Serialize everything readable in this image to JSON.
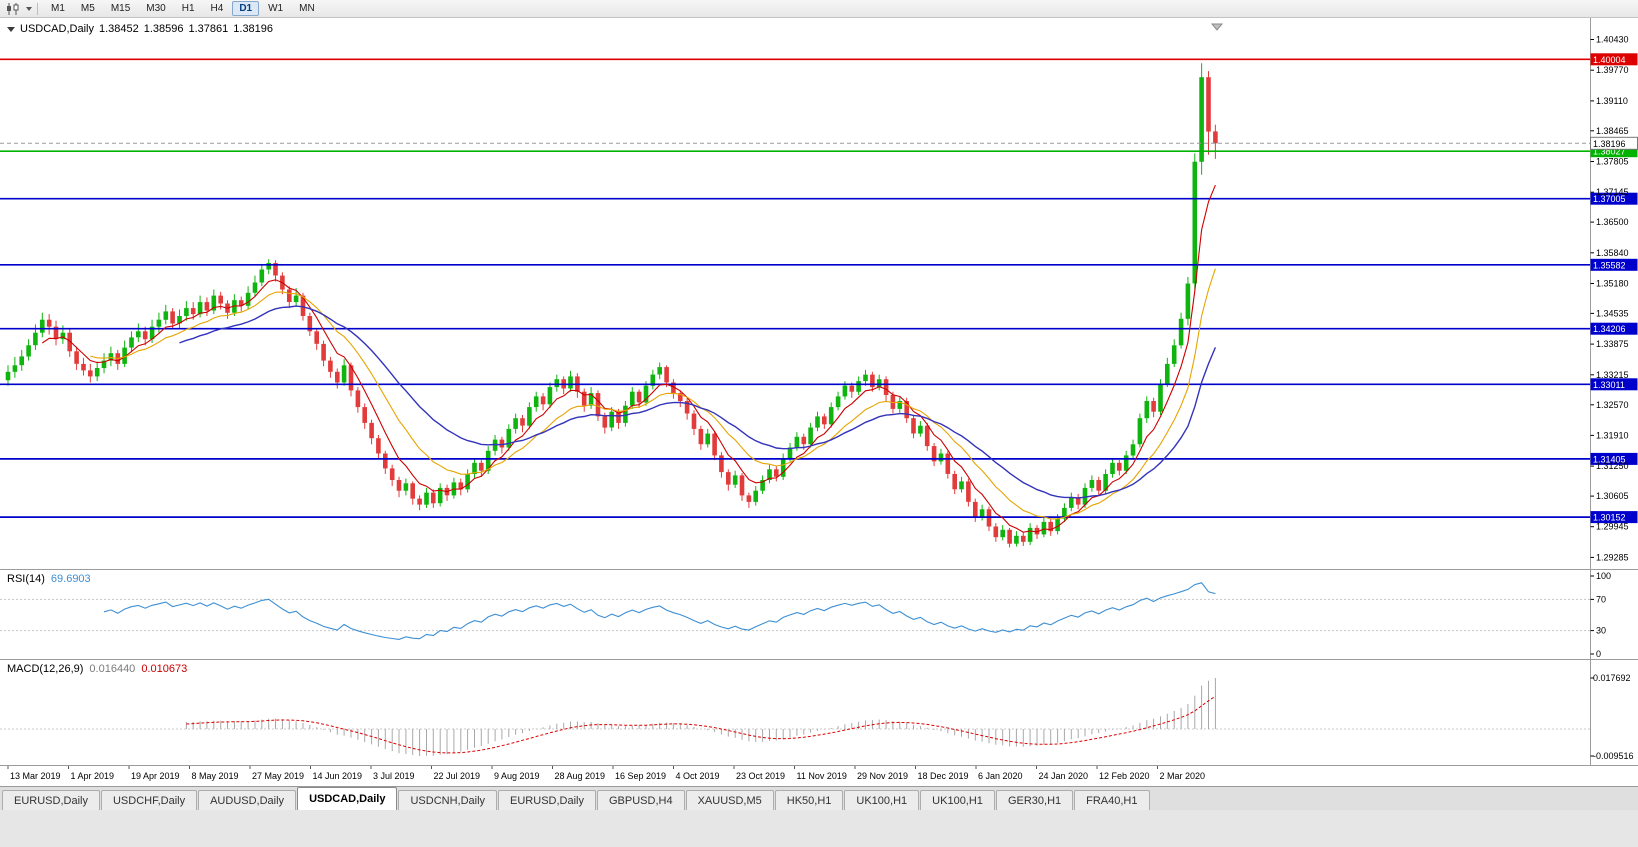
{
  "toolbar": {
    "timeframes": [
      "M1",
      "M5",
      "M15",
      "M30",
      "H1",
      "H4",
      "D1",
      "W1",
      "MN"
    ],
    "selected_timeframe": "D1"
  },
  "header": {
    "symbol": "USDCAD,Daily",
    "open": "1.38452",
    "high": "1.38596",
    "low": "1.37861",
    "close": "1.38196"
  },
  "chart_data": {
    "type": "candlestick",
    "symbol": "USDCAD",
    "timeframe": "Daily",
    "title": "USDCAD,Daily",
    "y_axis_ticks": [
      "1.40430",
      "1.39770",
      "1.39110",
      "1.38465",
      "1.37805",
      "1.37145",
      "1.36500",
      "1.35840",
      "1.35180",
      "1.34535",
      "1.33875",
      "1.33215",
      "1.32570",
      "1.31910",
      "1.31250",
      "1.30605",
      "1.29945",
      "1.29285"
    ],
    "x_axis_labels": [
      "13 Mar 2019",
      "1 Apr 2019",
      "19 Apr 2019",
      "8 May 2019",
      "27 May 2019",
      "14 Jun 2019",
      "3 Jul 2019",
      "22 Jul 2019",
      "9 Aug 2019",
      "28 Aug 2019",
      "16 Sep 2019",
      "4 Oct 2019",
      "23 Oct 2019",
      "11 Nov 2019",
      "29 Nov 2019",
      "18 Dec 2019",
      "6 Jan 2020",
      "24 Jan 2020",
      "12 Feb 2020",
      "2 Mar 2020"
    ],
    "price_lines": [
      {
        "price": 1.40004,
        "label": "1.40004",
        "color": "#dd0000",
        "role": "resistance"
      },
      {
        "price": 1.38027,
        "label": "1.38027",
        "color": "#00b300",
        "role": "support"
      },
      {
        "price": 1.37005,
        "label": "1.37005",
        "color": "#0000cc",
        "role": "level"
      },
      {
        "price": 1.35582,
        "label": "1.35582",
        "color": "#0000cc",
        "role": "level"
      },
      {
        "price": 1.34206,
        "label": "1.34206",
        "color": "#0000cc",
        "role": "level"
      },
      {
        "price": 1.33011,
        "label": "1.33011",
        "color": "#0000cc",
        "role": "level"
      },
      {
        "price": 1.31405,
        "label": "1.31405",
        "color": "#0000cc",
        "role": "level"
      },
      {
        "price": 1.30152,
        "label": "1.30152",
        "color": "#0000cc",
        "role": "level"
      }
    ],
    "current_price": {
      "value": 1.38196,
      "label": "1.38196"
    },
    "colors": {
      "bull": "#0fb40f",
      "bear": "#e13b3b",
      "ma_fast": "#cc0000",
      "ma_medium": "#e6a400",
      "ma_slow": "#3333bb",
      "rsi": "#3d8fd4",
      "macd_histogram": "#a8a8a8",
      "macd_signal": "#dd0000"
    },
    "candles": [
      [
        1.331,
        1.3342,
        1.3298,
        1.3328
      ],
      [
        1.3328,
        1.336,
        1.3315,
        1.3342
      ],
      [
        1.3342,
        1.3375,
        1.333,
        1.3361
      ],
      [
        1.3361,
        1.3398,
        1.3352,
        1.3385
      ],
      [
        1.3385,
        1.343,
        1.3375,
        1.3412
      ],
      [
        1.3412,
        1.3455,
        1.3402,
        1.344
      ],
      [
        1.344,
        1.3452,
        1.3408,
        1.3425
      ],
      [
        1.3425,
        1.3438,
        1.3385,
        1.3398
      ],
      [
        1.3398,
        1.3428,
        1.3388,
        1.3412
      ],
      [
        1.3412,
        1.342,
        1.336,
        1.3372
      ],
      [
        1.3372,
        1.3382,
        1.3332,
        1.3345
      ],
      [
        1.3345,
        1.3358,
        1.332,
        1.3331
      ],
      [
        1.3331,
        1.3345,
        1.3305,
        1.3318
      ],
      [
        1.3318,
        1.335,
        1.3308,
        1.3336
      ],
      [
        1.3336,
        1.3368,
        1.3325,
        1.3352
      ],
      [
        1.3352,
        1.3382,
        1.334,
        1.3368
      ],
      [
        1.3368,
        1.3375,
        1.3332,
        1.3345
      ],
      [
        1.3345,
        1.3395,
        1.3338,
        1.338
      ],
      [
        1.338,
        1.3415,
        1.337,
        1.3402
      ],
      [
        1.3402,
        1.3432,
        1.3392,
        1.3415
      ],
      [
        1.3415,
        1.3425,
        1.3385,
        1.3398
      ],
      [
        1.3398,
        1.344,
        1.339,
        1.3425
      ],
      [
        1.3425,
        1.3455,
        1.3412,
        1.344
      ],
      [
        1.344,
        1.3472,
        1.343,
        1.3458
      ],
      [
        1.3458,
        1.3465,
        1.342,
        1.3432
      ],
      [
        1.3432,
        1.3462,
        1.3422,
        1.3448
      ],
      [
        1.3448,
        1.348,
        1.3438,
        1.3465
      ],
      [
        1.3465,
        1.3478,
        1.344,
        1.3452
      ],
      [
        1.3452,
        1.3492,
        1.3445,
        1.3478
      ],
      [
        1.3478,
        1.3488,
        1.3448,
        1.346
      ],
      [
        1.346,
        1.3505,
        1.3452,
        1.3492
      ],
      [
        1.3492,
        1.35,
        1.3462,
        1.3475
      ],
      [
        1.3475,
        1.3482,
        1.3442,
        1.3455
      ],
      [
        1.3455,
        1.3495,
        1.3448,
        1.3482
      ],
      [
        1.3482,
        1.349,
        1.3458,
        1.347
      ],
      [
        1.347,
        1.3512,
        1.3462,
        1.3498
      ],
      [
        1.3498,
        1.3535,
        1.349,
        1.352
      ],
      [
        1.352,
        1.356,
        1.3512,
        1.3548
      ],
      [
        1.3548,
        1.357,
        1.3538,
        1.3562
      ],
      [
        1.3562,
        1.3568,
        1.3522,
        1.3535
      ],
      [
        1.3535,
        1.3542,
        1.3495,
        1.3505
      ],
      [
        1.3505,
        1.3512,
        1.3465,
        1.3478
      ],
      [
        1.3478,
        1.3508,
        1.3468,
        1.3492
      ],
      [
        1.3492,
        1.3498,
        1.3438,
        1.3448
      ],
      [
        1.3448,
        1.3455,
        1.3405,
        1.3415
      ],
      [
        1.3415,
        1.3422,
        1.3375,
        1.3388
      ],
      [
        1.3388,
        1.3395,
        1.334,
        1.3352
      ],
      [
        1.3352,
        1.336,
        1.3315,
        1.3328
      ],
      [
        1.3328,
        1.3335,
        1.3292,
        1.3305
      ],
      [
        1.3305,
        1.3355,
        1.3298,
        1.3342
      ],
      [
        1.3342,
        1.3348,
        1.3275,
        1.3288
      ],
      [
        1.3288,
        1.3295,
        1.324,
        1.3252
      ],
      [
        1.3252,
        1.326,
        1.3205,
        1.3218
      ],
      [
        1.3218,
        1.3225,
        1.3172,
        1.3185
      ],
      [
        1.3185,
        1.3192,
        1.314,
        1.3152
      ],
      [
        1.3152,
        1.3158,
        1.3108,
        1.312
      ],
      [
        1.312,
        1.3128,
        1.3082,
        1.3095
      ],
      [
        1.3095,
        1.3102,
        1.3058,
        1.3072
      ],
      [
        1.3072,
        1.3098,
        1.3062,
        1.3088
      ],
      [
        1.3088,
        1.3092,
        1.3042,
        1.3055
      ],
      [
        1.3055,
        1.3062,
        1.303,
        1.3042
      ],
      [
        1.3042,
        1.3078,
        1.3035,
        1.3068
      ],
      [
        1.3068,
        1.3075,
        1.3035,
        1.3045
      ],
      [
        1.3045,
        1.3088,
        1.3038,
        1.3078
      ],
      [
        1.3078,
        1.3085,
        1.305,
        1.3062
      ],
      [
        1.3062,
        1.31,
        1.3055,
        1.309
      ],
      [
        1.309,
        1.3098,
        1.3062,
        1.3075
      ],
      [
        1.3075,
        1.3118,
        1.3068,
        1.3108
      ],
      [
        1.3108,
        1.3142,
        1.3098,
        1.3132
      ],
      [
        1.3132,
        1.3138,
        1.3102,
        1.3115
      ],
      [
        1.3115,
        1.3168,
        1.3108,
        1.3158
      ],
      [
        1.3158,
        1.3192,
        1.3148,
        1.3182
      ],
      [
        1.3182,
        1.3188,
        1.3152,
        1.3165
      ],
      [
        1.3165,
        1.3215,
        1.3158,
        1.3205
      ],
      [
        1.3205,
        1.3238,
        1.3195,
        1.3228
      ],
      [
        1.3228,
        1.3235,
        1.3198,
        1.3212
      ],
      [
        1.3212,
        1.3262,
        1.3205,
        1.3252
      ],
      [
        1.3252,
        1.3285,
        1.3242,
        1.3275
      ],
      [
        1.3275,
        1.3282,
        1.3245,
        1.3258
      ],
      [
        1.3258,
        1.3305,
        1.325,
        1.3295
      ],
      [
        1.3295,
        1.3322,
        1.3285,
        1.3312
      ],
      [
        1.3312,
        1.3318,
        1.328,
        1.3292
      ],
      [
        1.3292,
        1.333,
        1.3285,
        1.3318
      ],
      [
        1.3318,
        1.3325,
        1.3272,
        1.3285
      ],
      [
        1.3285,
        1.3292,
        1.3242,
        1.3255
      ],
      [
        1.3255,
        1.3295,
        1.3248,
        1.3282
      ],
      [
        1.3282,
        1.3288,
        1.3222,
        1.3232
      ],
      [
        1.3232,
        1.324,
        1.3195,
        1.3208
      ],
      [
        1.3208,
        1.3252,
        1.32,
        1.3242
      ],
      [
        1.3242,
        1.3248,
        1.3205,
        1.3218
      ],
      [
        1.3218,
        1.3265,
        1.321,
        1.3255
      ],
      [
        1.3255,
        1.3295,
        1.3248,
        1.3285
      ],
      [
        1.3285,
        1.329,
        1.325,
        1.3262
      ],
      [
        1.3262,
        1.3308,
        1.3255,
        1.3298
      ],
      [
        1.3298,
        1.3332,
        1.329,
        1.3322
      ],
      [
        1.3322,
        1.3348,
        1.3312,
        1.3338
      ],
      [
        1.3338,
        1.3342,
        1.3295,
        1.3305
      ],
      [
        1.3305,
        1.3312,
        1.327,
        1.3282
      ],
      [
        1.3282,
        1.3288,
        1.3252,
        1.3265
      ],
      [
        1.3265,
        1.3272,
        1.3225,
        1.3238
      ],
      [
        1.3238,
        1.3245,
        1.3192,
        1.3205
      ],
      [
        1.3205,
        1.3212,
        1.316,
        1.3172
      ],
      [
        1.3172,
        1.3205,
        1.3165,
        1.3195
      ],
      [
        1.3195,
        1.32,
        1.3138,
        1.3148
      ],
      [
        1.3148,
        1.3155,
        1.31,
        1.3112
      ],
      [
        1.3112,
        1.3118,
        1.3072,
        1.3085
      ],
      [
        1.3085,
        1.3115,
        1.3078,
        1.3105
      ],
      [
        1.3105,
        1.311,
        1.305,
        1.3062
      ],
      [
        1.3062,
        1.3068,
        1.3035,
        1.3048
      ],
      [
        1.3048,
        1.3082,
        1.304,
        1.3072
      ],
      [
        1.3072,
        1.3105,
        1.3065,
        1.3095
      ],
      [
        1.3095,
        1.3128,
        1.3088,
        1.3118
      ],
      [
        1.3118,
        1.3125,
        1.3092,
        1.3102
      ],
      [
        1.3102,
        1.3152,
        1.3095,
        1.3142
      ],
      [
        1.3142,
        1.3175,
        1.3135,
        1.3165
      ],
      [
        1.3165,
        1.3198,
        1.3158,
        1.3188
      ],
      [
        1.3188,
        1.3195,
        1.316,
        1.3172
      ],
      [
        1.3172,
        1.3218,
        1.3165,
        1.3208
      ],
      [
        1.3208,
        1.3242,
        1.32,
        1.3232
      ],
      [
        1.3232,
        1.3238,
        1.3205,
        1.3215
      ],
      [
        1.3215,
        1.3262,
        1.3208,
        1.3252
      ],
      [
        1.3252,
        1.3285,
        1.3245,
        1.3275
      ],
      [
        1.3275,
        1.3308,
        1.3268,
        1.3298
      ],
      [
        1.3298,
        1.3305,
        1.3272,
        1.3285
      ],
      [
        1.3285,
        1.3318,
        1.3278,
        1.3308
      ],
      [
        1.3308,
        1.3332,
        1.3298,
        1.3322
      ],
      [
        1.3322,
        1.3328,
        1.3285,
        1.3295
      ],
      [
        1.3295,
        1.3322,
        1.3288,
        1.3312
      ],
      [
        1.3312,
        1.3318,
        1.3265,
        1.3278
      ],
      [
        1.3278,
        1.3285,
        1.3238,
        1.3248
      ],
      [
        1.3248,
        1.3275,
        1.324,
        1.3265
      ],
      [
        1.3265,
        1.3272,
        1.3218,
        1.3228
      ],
      [
        1.3228,
        1.3235,
        1.3185,
        1.3195
      ],
      [
        1.3195,
        1.3222,
        1.3188,
        1.3212
      ],
      [
        1.3212,
        1.3218,
        1.3158,
        1.3168
      ],
      [
        1.3168,
        1.3175,
        1.3125,
        1.3135
      ],
      [
        1.3135,
        1.3162,
        1.3128,
        1.3152
      ],
      [
        1.3152,
        1.3158,
        1.3098,
        1.3108
      ],
      [
        1.3108,
        1.3115,
        1.3065,
        1.3075
      ],
      [
        1.3075,
        1.3102,
        1.3068,
        1.3092
      ],
      [
        1.3092,
        1.3098,
        1.3038,
        1.3048
      ],
      [
        1.3048,
        1.3055,
        1.3005,
        1.3015
      ],
      [
        1.3015,
        1.3042,
        1.3008,
        1.3032
      ],
      [
        1.3032,
        1.3038,
        1.2985,
        1.2995
      ],
      [
        1.2995,
        1.3002,
        1.2962,
        1.2972
      ],
      [
        1.2972,
        1.2998,
        1.2965,
        1.2988
      ],
      [
        1.2988,
        1.2992,
        1.295,
        1.2958
      ],
      [
        1.2958,
        1.2985,
        1.2952,
        1.2975
      ],
      [
        1.2975,
        1.2982,
        1.2953,
        1.2962
      ],
      [
        1.2962,
        1.3002,
        1.2955,
        1.2992
      ],
      [
        1.2992,
        1.2998,
        1.2968,
        1.2978
      ],
      [
        1.2978,
        1.3015,
        1.2972,
        1.3005
      ],
      [
        1.3005,
        1.3012,
        1.2975,
        1.2985
      ],
      [
        1.2985,
        1.3022,
        1.2978,
        1.3012
      ],
      [
        1.3012,
        1.3045,
        1.3005,
        1.3035
      ],
      [
        1.3035,
        1.3068,
        1.3028,
        1.3058
      ],
      [
        1.3058,
        1.3065,
        1.3032,
        1.3042
      ],
      [
        1.3042,
        1.3088,
        1.3035,
        1.3078
      ],
      [
        1.3078,
        1.3105,
        1.307,
        1.3095
      ],
      [
        1.3095,
        1.3102,
        1.3062,
        1.3072
      ],
      [
        1.3072,
        1.3118,
        1.3065,
        1.3108
      ],
      [
        1.3108,
        1.3142,
        1.31,
        1.3132
      ],
      [
        1.3132,
        1.3138,
        1.3105,
        1.3115
      ],
      [
        1.3115,
        1.3158,
        1.3108,
        1.3148
      ],
      [
        1.3148,
        1.3182,
        1.314,
        1.3172
      ],
      [
        1.3172,
        1.3238,
        1.3165,
        1.3228
      ],
      [
        1.3228,
        1.3275,
        1.3218,
        1.3265
      ],
      [
        1.3265,
        1.3272,
        1.323,
        1.3242
      ],
      [
        1.3242,
        1.3312,
        1.3235,
        1.3302
      ],
      [
        1.3302,
        1.3358,
        1.3295,
        1.3345
      ],
      [
        1.3345,
        1.3398,
        1.3338,
        1.3385
      ],
      [
        1.3385,
        1.3455,
        1.3378,
        1.3442
      ],
      [
        1.3442,
        1.3532,
        1.3428,
        1.3518
      ],
      [
        1.3518,
        1.3798,
        1.3505,
        1.378
      ],
      [
        1.378,
        1.3992,
        1.3752,
        1.3962
      ],
      [
        1.3962,
        1.3975,
        1.3795,
        1.3845
      ],
      [
        1.38452,
        1.38596,
        1.37861,
        1.38196
      ]
    ],
    "indicators": {
      "rsi": {
        "label": "RSI(14)",
        "value": "69.6903",
        "scale_labels": [
          "100",
          "70",
          "30",
          "0"
        ],
        "levels": [
          70,
          30
        ]
      },
      "macd": {
        "label": "MACD(12,26,9)",
        "value_main": "0.016440",
        "value_signal": "0.010673",
        "scale_labels": [
          "0.017692",
          "-0.009516"
        ]
      }
    }
  },
  "tabs": {
    "items": [
      "EURUSD,Daily",
      "USDCHF,Daily",
      "AUDUSD,Daily",
      "USDCAD,Daily",
      "USDCNH,Daily",
      "EURUSD,Daily",
      "GBPUSD,H4",
      "XAUUSD,M5",
      "HK50,H1",
      "UK100,H1",
      "UK100,H1",
      "GER30,H1",
      "FRA40,H1"
    ],
    "active": "USDCAD,Daily",
    "active_index": 3
  }
}
